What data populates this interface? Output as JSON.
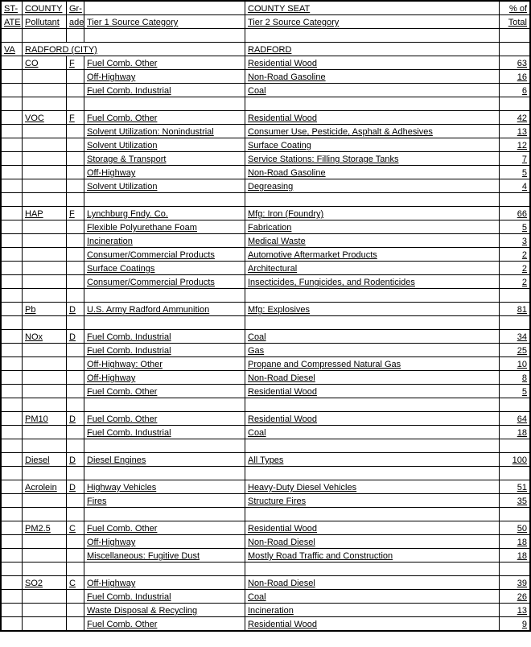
{
  "header": {
    "row1": {
      "st": "ST-",
      "county": "COUNTY",
      "gr": "Gr-",
      "seat": "COUNTY SEAT",
      "pct": "% of"
    },
    "row2": {
      "ate": "ATE",
      "pol": "Pollutant",
      "ade": "ade",
      "t1": "Tier 1 Source Category",
      "t2": "Tier 2 Source Category",
      "tot": "Total"
    }
  },
  "state": "VA",
  "county": "RADFORD (CITY)",
  "seat": "RADFORD",
  "groups": [
    {
      "pol": "CO",
      "gr": "F",
      "rows": [
        {
          "t1": "Fuel Comb. Other",
          "t2": "Residential Wood",
          "pct": "63"
        },
        {
          "t1": "Off-Highway",
          "t2": "Non-Road Gasoline",
          "pct": "16"
        },
        {
          "t1": "Fuel Comb. Industrial",
          "t2": "Coal",
          "pct": "6"
        }
      ]
    },
    {
      "pol": "VOC",
      "gr": "F",
      "rows": [
        {
          "t1": "Fuel Comb. Other",
          "t2": "Residential Wood",
          "pct": "42"
        },
        {
          "t1": "Solvent Utilization: Nonindustrial",
          "t2": "Consumer Use, Pesticide, Asphalt & Adhesives",
          "pct": "13"
        },
        {
          "t1": "Solvent Utilization",
          "t2": "Surface Coating",
          "pct": "12"
        },
        {
          "t1": "Storage & Transport",
          "t2": "Service Stations: Filling Storage Tanks",
          "pct": "7"
        },
        {
          "t1": "Off-Highway",
          "t2": "Non-Road Gasoline",
          "pct": "5"
        },
        {
          "t1": "Solvent Utilization",
          "t2": "Degreasing",
          "pct": "4"
        }
      ]
    },
    {
      "pol": "HAP",
      "gr": "F",
      "rows": [
        {
          "t1": "Lynchburg Fndy. Co.",
          "t2": "Mfg: Iron (Foundry)",
          "pct": "66"
        },
        {
          "t1": "Flexible Polyurethane Foam",
          "t2": "Fabrication",
          "pct": "5"
        },
        {
          "t1": "Incineration",
          "t2": "Medical Waste",
          "pct": "3"
        },
        {
          "t1": "Consumer/Commercial Products",
          "t2": "Automotive Aftermarket Products",
          "pct": "2"
        },
        {
          "t1": "Surface Coatings",
          "t2": "Architectural",
          "pct": "2"
        },
        {
          "t1": "Consumer/Commercial Products",
          "t2": "Insecticides, Fungicides, and Rodenticides",
          "pct": "2"
        }
      ]
    },
    {
      "pol": "Pb",
      "gr": "D",
      "rows": [
        {
          "t1": "U.S. Army Radford Ammunition",
          "t2": "Mfg: Explosives",
          "pct": "81"
        }
      ]
    },
    {
      "pol": "NOx",
      "gr": "D",
      "rows": [
        {
          "t1": "Fuel Comb. Industrial",
          "t2": "Coal",
          "pct": "34"
        },
        {
          "t1": "Fuel Comb. Industrial",
          "t2": "Gas",
          "pct": "25"
        },
        {
          "t1": "Off-Highway: Other",
          "t2": "Propane and Compressed Natural Gas",
          "pct": "10"
        },
        {
          "t1": "Off-Highway",
          "t2": "Non-Road Diesel",
          "pct": "8"
        },
        {
          "t1": "Fuel Comb. Other",
          "t2": "Residential Wood",
          "pct": "5"
        }
      ]
    },
    {
      "pol": "PM10",
      "gr": "D",
      "rows": [
        {
          "t1": "Fuel Comb. Other",
          "t2": "Residential Wood",
          "pct": "64"
        },
        {
          "t1": "Fuel Comb. Industrial",
          "t2": "Coal",
          "pct": "18"
        }
      ]
    },
    {
      "pol": "Diesel",
      "gr": "D",
      "rows": [
        {
          "t1": "Diesel Engines",
          "t2": "All Types",
          "pct": "100"
        }
      ]
    },
    {
      "pol": "Acrolein",
      "gr": "D",
      "rows": [
        {
          "t1": "Highway Vehicles",
          "t2": "Heavy-Duty Diesel Vehicles",
          "pct": "51"
        },
        {
          "t1": "Fires",
          "t2": "Structure Fires",
          "pct": "35"
        }
      ]
    },
    {
      "pol": "PM2.5",
      "gr": "C",
      "rows": [
        {
          "t1": "Fuel Comb. Other",
          "t2": "Residential Wood",
          "pct": "50"
        },
        {
          "t1": "Off-Highway",
          "t2": "Non-Road Diesel",
          "pct": "18"
        },
        {
          "t1": "Miscellaneous: Fugitive Dust",
          "t2": "Mostly Road Traffic and Construction",
          "pct": "18"
        }
      ]
    },
    {
      "pol": "SO2",
      "gr": "C",
      "rows": [
        {
          "t1": "Off-Highway",
          "t2": "Non-Road Diesel",
          "pct": "39"
        },
        {
          "t1": "Fuel Comb. Industrial",
          "t2": "Coal",
          "pct": "26"
        },
        {
          "t1": "Waste Disposal & Recycling",
          "t2": "Incineration",
          "pct": "13"
        },
        {
          "t1": "Fuel Comb. Other",
          "t2": "Residential Wood",
          "pct": "9"
        }
      ]
    }
  ]
}
